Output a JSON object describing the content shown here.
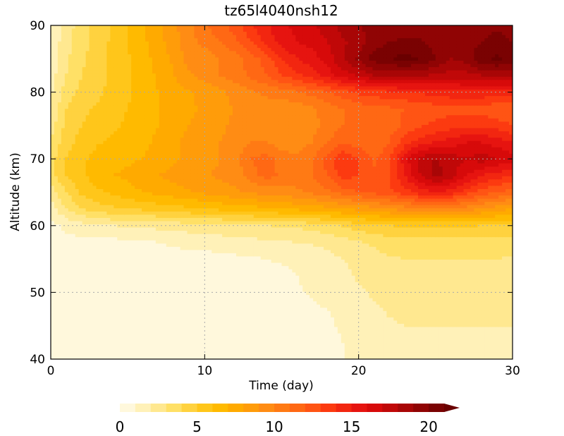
{
  "chart_data": {
    "type": "heatmap",
    "title": "tz65l4040nsh12",
    "xlabel": "Time (day)",
    "ylabel": "Altitude (km)",
    "xlim": [
      0,
      30
    ],
    "ylim": [
      40,
      90
    ],
    "x_ticks": [
      0,
      10,
      20,
      30
    ],
    "y_ticks": [
      40,
      50,
      60,
      70,
      80,
      90
    ],
    "x_tick_labels": [
      "0",
      "10",
      "20",
      "30"
    ],
    "y_tick_labels": [
      "40",
      "50",
      "60",
      "70",
      "80",
      "90"
    ],
    "grid": "dotted",
    "colorbar": {
      "orientation": "horizontal",
      "min": 0,
      "max": 21,
      "step": 1,
      "extend": "max",
      "tick_values": [
        0,
        5,
        10,
        15,
        20
      ],
      "tick_labels": [
        "0",
        "5",
        "10",
        "15",
        "20"
      ],
      "colors": [
        "#fff8dc",
        "#fff1b8",
        "#ffe890",
        "#ffe066",
        "#ffd23f",
        "#ffc61a",
        "#ffba00",
        "#ffaa00",
        "#ff9c0a",
        "#ff8c14",
        "#ff7a14",
        "#ff6814",
        "#ff5414",
        "#fc3a10",
        "#f22610",
        "#e61410",
        "#d70a0a",
        "#c00808",
        "#a80606",
        "#900404",
        "#7a0202",
        "#6a0000"
      ]
    },
    "data_grid": {
      "x": [
        0,
        1,
        2,
        3,
        4,
        5,
        6,
        7,
        8,
        9,
        10,
        11,
        12,
        13,
        14,
        15,
        16,
        17,
        18,
        19,
        20,
        21,
        22,
        23,
        24,
        25,
        26,
        27,
        28,
        29,
        30
      ],
      "y": [
        40,
        42.5,
        45,
        47.5,
        50,
        52.5,
        55,
        57.5,
        60,
        62.5,
        65,
        67.5,
        70,
        72.5,
        75,
        77.5,
        80,
        82.5,
        85,
        87.5,
        90
      ],
      "z": [
        [
          0.5,
          0.6,
          0.6,
          0.6,
          0.6,
          0.6,
          0.6,
          0.6,
          0.6,
          0.6,
          0.6,
          0.6,
          0.6,
          0.6,
          0.6,
          0.6,
          0.6,
          0.7,
          0.8,
          1.0,
          1.2,
          1.5,
          1.8,
          1.9,
          1.9,
          1.9,
          1.9,
          1.9,
          1.8,
          1.8,
          1.8
        ],
        [
          0.5,
          0.6,
          0.6,
          0.6,
          0.6,
          0.6,
          0.6,
          0.6,
          0.6,
          0.6,
          0.6,
          0.6,
          0.6,
          0.6,
          0.6,
          0.6,
          0.6,
          0.7,
          0.8,
          1.0,
          1.2,
          1.5,
          1.8,
          1.9,
          1.9,
          1.9,
          1.9,
          1.9,
          1.8,
          1.8,
          1.8
        ],
        [
          0.5,
          0.6,
          0.6,
          0.6,
          0.6,
          0.6,
          0.6,
          0.6,
          0.6,
          0.6,
          0.6,
          0.6,
          0.6,
          0.6,
          0.6,
          0.6,
          0.6,
          0.8,
          0.9,
          1.1,
          1.4,
          1.7,
          1.9,
          2.0,
          2.0,
          2.0,
          2.0,
          2.0,
          2.0,
          2.0,
          2.0
        ],
        [
          0.5,
          0.6,
          0.6,
          0.6,
          0.6,
          0.6,
          0.6,
          0.6,
          0.6,
          0.6,
          0.6,
          0.6,
          0.6,
          0.6,
          0.6,
          0.6,
          0.7,
          0.9,
          1.0,
          1.2,
          1.6,
          1.9,
          2.1,
          2.2,
          2.2,
          2.2,
          2.2,
          2.2,
          2.2,
          2.2,
          2.2
        ],
        [
          0.5,
          0.6,
          0.6,
          0.6,
          0.6,
          0.6,
          0.6,
          0.6,
          0.6,
          0.6,
          0.6,
          0.6,
          0.6,
          0.6,
          0.6,
          0.7,
          0.9,
          1.1,
          1.3,
          1.6,
          1.9,
          2.1,
          2.3,
          2.4,
          2.4,
          2.4,
          2.4,
          2.4,
          2.4,
          2.4,
          2.4
        ],
        [
          0.5,
          0.6,
          0.6,
          0.6,
          0.6,
          0.6,
          0.6,
          0.6,
          0.6,
          0.6,
          0.6,
          0.6,
          0.6,
          0.6,
          0.7,
          0.8,
          1.0,
          1.2,
          1.5,
          1.8,
          2.1,
          2.3,
          2.6,
          2.7,
          2.7,
          2.7,
          2.7,
          2.7,
          2.7,
          2.7,
          2.6
        ],
        [
          0.5,
          0.6,
          0.6,
          0.6,
          0.6,
          0.6,
          0.6,
          0.6,
          0.6,
          0.6,
          0.6,
          0.7,
          0.8,
          0.9,
          1.0,
          1.1,
          1.2,
          1.4,
          1.7,
          2.0,
          2.3,
          2.6,
          2.9,
          3.0,
          3.0,
          3.0,
          3.0,
          3.0,
          3.0,
          3.0,
          2.9
        ],
        [
          0.6,
          0.7,
          0.7,
          0.7,
          0.7,
          0.8,
          0.9,
          1.0,
          1.2,
          1.3,
          1.4,
          1.5,
          1.6,
          1.7,
          1.8,
          1.9,
          2.0,
          2.1,
          2.3,
          2.6,
          2.9,
          3.2,
          3.5,
          3.6,
          3.6,
          3.6,
          3.6,
          3.6,
          3.6,
          3.6,
          3.5
        ],
        [
          0.7,
          1.2,
          1.6,
          1.8,
          2.0,
          2.1,
          2.2,
          2.3,
          2.4,
          2.5,
          2.6,
          2.7,
          2.8,
          2.9,
          3.0,
          3.1,
          3.2,
          3.4,
          3.7,
          4.1,
          4.5,
          4.8,
          5.0,
          5.1,
          5.1,
          5.1,
          5.1,
          5.1,
          5.0,
          5.0,
          5.0
        ],
        [
          1.5,
          3.0,
          4.0,
          4.5,
          4.8,
          5.0,
          5.2,
          5.4,
          5.6,
          5.8,
          6.0,
          6.2,
          6.4,
          6.6,
          6.8,
          7.0,
          7.2,
          7.4,
          7.7,
          8.0,
          8.3,
          8.6,
          9.0,
          9.5,
          9.8,
          10.0,
          9.8,
          9.5,
          9.0,
          8.5,
          8.0
        ],
        [
          2.5,
          4.0,
          5.2,
          5.8,
          6.2,
          6.6,
          7.0,
          7.3,
          7.6,
          7.9,
          8.2,
          8.5,
          8.8,
          9.1,
          9.4,
          9.6,
          9.8,
          10.2,
          10.8,
          11.5,
          12.0,
          12.3,
          12.8,
          13.5,
          14.5,
          15.0,
          14.5,
          13.5,
          12.5,
          12.0,
          11.5
        ],
        [
          3.5,
          5.0,
          5.8,
          6.5,
          7.0,
          7.2,
          7.6,
          8.0,
          8.3,
          8.6,
          8.9,
          9.2,
          9.5,
          10.5,
          11.5,
          10.8,
          10.5,
          11.0,
          12.0,
          13.5,
          13.0,
          12.2,
          13.0,
          15.0,
          17.0,
          18.5,
          17.5,
          16.0,
          15.0,
          14.5,
          14.0
        ],
        [
          3.5,
          5.0,
          5.8,
          6.3,
          6.6,
          6.8,
          7.0,
          7.3,
          7.8,
          8.3,
          8.6,
          9.0,
          9.6,
          11.0,
          11.5,
          10.5,
          10.2,
          10.8,
          12.5,
          14.0,
          13.0,
          11.8,
          12.8,
          15.5,
          17.5,
          18.0,
          17.5,
          17.0,
          17.5,
          17.0,
          16.5
        ],
        [
          3.0,
          4.6,
          5.4,
          5.9,
          6.2,
          6.5,
          6.8,
          7.2,
          7.8,
          8.3,
          8.6,
          9.0,
          9.4,
          10.0,
          10.0,
          9.5,
          9.5,
          10.0,
          11.0,
          11.8,
          11.5,
          11.0,
          12.0,
          13.5,
          14.5,
          15.0,
          15.5,
          16.0,
          16.0,
          15.5,
          15.0
        ],
        [
          2.5,
          4.3,
          5.0,
          5.4,
          5.8,
          6.2,
          6.6,
          7.0,
          7.6,
          8.0,
          8.4,
          8.8,
          9.2,
          9.6,
          9.6,
          9.3,
          9.3,
          9.7,
          10.4,
          11.0,
          11.2,
          11.0,
          11.5,
          12.2,
          12.8,
          13.3,
          13.5,
          13.8,
          13.8,
          13.5,
          13.0
        ],
        [
          2.0,
          4.0,
          4.8,
          5.1,
          5.6,
          6.0,
          6.5,
          7.0,
          7.4,
          7.8,
          8.2,
          8.6,
          9.1,
          9.5,
          9.6,
          9.3,
          9.4,
          9.8,
          10.4,
          11.0,
          11.4,
          11.6,
          11.8,
          12.0,
          12.2,
          12.5,
          12.6,
          12.6,
          12.5,
          12.2,
          12.0
        ],
        [
          1.8,
          3.5,
          4.3,
          4.8,
          5.3,
          5.8,
          6.4,
          7.0,
          7.5,
          7.9,
          8.3,
          8.8,
          9.3,
          9.8,
          10.2,
          10.5,
          10.9,
          11.4,
          12.0,
          12.6,
          13.2,
          13.6,
          13.8,
          14.0,
          14.2,
          14.5,
          14.7,
          14.8,
          14.8,
          14.6,
          14.4
        ],
        [
          1.5,
          3.0,
          4.0,
          4.6,
          5.2,
          5.8,
          6.4,
          7.2,
          8.0,
          8.8,
          9.4,
          10.0,
          10.6,
          11.2,
          12.0,
          13.0,
          13.8,
          14.5,
          15.5,
          16.5,
          17.2,
          18.0,
          18.3,
          18.4,
          18.2,
          17.8,
          17.5,
          17.6,
          18.0,
          18.3,
          18.0
        ],
        [
          1.3,
          2.8,
          3.8,
          4.5,
          5.2,
          5.9,
          6.6,
          7.4,
          8.2,
          9.5,
          9.3,
          10.0,
          10.6,
          11.4,
          12.5,
          14.0,
          15.0,
          15.5,
          16.5,
          18.0,
          19.2,
          20.5,
          21.0,
          21.3,
          21.0,
          20.0,
          19.0,
          19.5,
          20.8,
          21.2,
          20.5
        ],
        [
          1.2,
          2.6,
          3.6,
          4.4,
          5.2,
          6.0,
          6.8,
          7.6,
          8.6,
          9.6,
          10.4,
          11.0,
          11.8,
          13.0,
          14.3,
          15.5,
          16.0,
          16.4,
          17.0,
          17.8,
          18.6,
          19.4,
          20.0,
          20.4,
          20.2,
          19.6,
          19.2,
          19.4,
          20.0,
          20.4,
          20.0
        ],
        [
          1.0,
          2.5,
          3.5,
          4.3,
          5.2,
          6.0,
          6.8,
          7.8,
          8.8,
          9.8,
          10.8,
          11.6,
          12.5,
          13.8,
          14.8,
          15.8,
          16.2,
          16.8,
          17.5,
          18.5,
          19.0,
          19.2,
          19.0,
          19.0,
          19.2,
          19.4,
          19.4,
          19.4,
          19.6,
          19.8,
          19.6
        ]
      ]
    }
  }
}
